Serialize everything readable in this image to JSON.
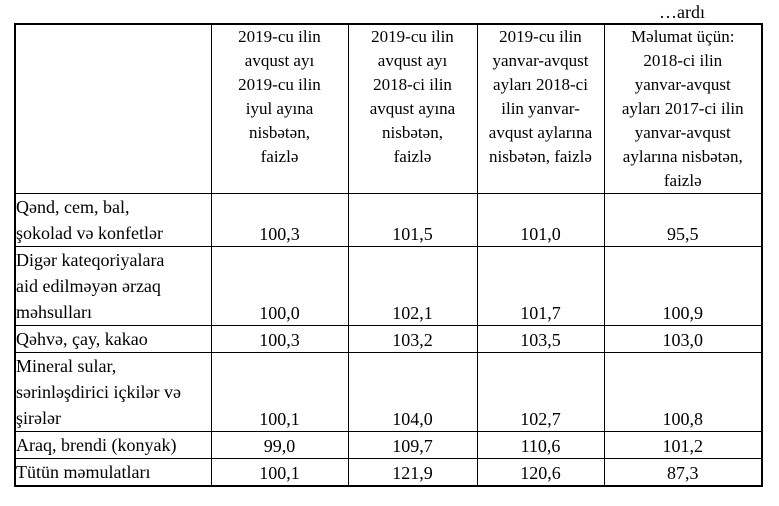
{
  "continuation_label": "…ardı",
  "table": {
    "headers": [
      {
        "text": "",
        "lines": []
      },
      {
        "text": "2019-cu ilin avqust ayı 2019-cu ilin iyul ayına nisbətən, faizlə",
        "lines": [
          "2019-cu ilin",
          "avqust ayı",
          "2019-cu ilin",
          "iyul ayına",
          "nisbətən,",
          "faizlə"
        ]
      },
      {
        "text": "2019-cu ilin avqust ayı 2018-ci ilin avqust ayına nisbətən, faizlə",
        "lines": [
          "2019-cu ilin",
          "avqust ayı",
          "2018-ci ilin",
          "avqust ayına",
          "nisbətən,",
          "faizlə"
        ]
      },
      {
        "text": "2019-cu ilin yanvar-avqust ayları 2018-ci ilin yanvar-avqust aylarına nisbətən, faizlə",
        "lines": [
          "2019-cu ilin",
          "yanvar-avqust",
          "ayları 2018-ci",
          "ilin yanvar-",
          "avqust aylarına",
          "nisbətən, faizlə"
        ]
      },
      {
        "text": "Məlumat üçün: 2018-ci ilin yanvar-avqust ayları 2017-ci ilin yanvar-avqust aylarına nisbətən, faizlə",
        "lines": [
          "Məlumat üçün:",
          "2018-ci ilin",
          "yanvar-avqust",
          "ayları 2017-ci ilin",
          "yanvar-avqust",
          "aylarına nisbətən,",
          "faizlə"
        ]
      }
    ],
    "rows": [
      {
        "label": "Qənd, cem, bal, şokolad və konfetlər",
        "label_lines": [
          "Qənd, cem, bal,",
          "şokolad və konfetlər"
        ],
        "values": [
          "100,3",
          "101,5",
          "101,0",
          "95,5"
        ]
      },
      {
        "label": "Digər kateqoriyalara aid edilməyən ərzaq məhsulları",
        "label_lines": [
          "Digər kateqoriyalara",
          "aid edilməyən ərzaq",
          "məhsulları"
        ],
        "values": [
          "100,0",
          "102,1",
          "101,7",
          "100,9"
        ]
      },
      {
        "label": "Qəhvə, çay, kakao",
        "label_lines": [
          "Qəhvə, çay, kakao"
        ],
        "values": [
          "100,3",
          "103,2",
          "103,5",
          "103,0"
        ]
      },
      {
        "label": "Mineral sular, sərinləşdirici içkilər və şirələr",
        "label_lines": [
          "Mineral sular,",
          "sərinləşdirici içkilər və",
          "şirələr"
        ],
        "values": [
          "100,1",
          "104,0",
          "102,7",
          "100,8"
        ]
      },
      {
        "label": "Araq, brendi (konyak)",
        "label_lines": [
          "Araq, brendi (konyak)"
        ],
        "values": [
          "99,0",
          "109,7",
          "110,6",
          "101,2"
        ]
      },
      {
        "label": "Tütün məmulatları",
        "label_lines": [
          "Tütün məmulatları"
        ],
        "values": [
          "100,1",
          "121,9",
          "120,6",
          "87,3"
        ]
      }
    ]
  }
}
